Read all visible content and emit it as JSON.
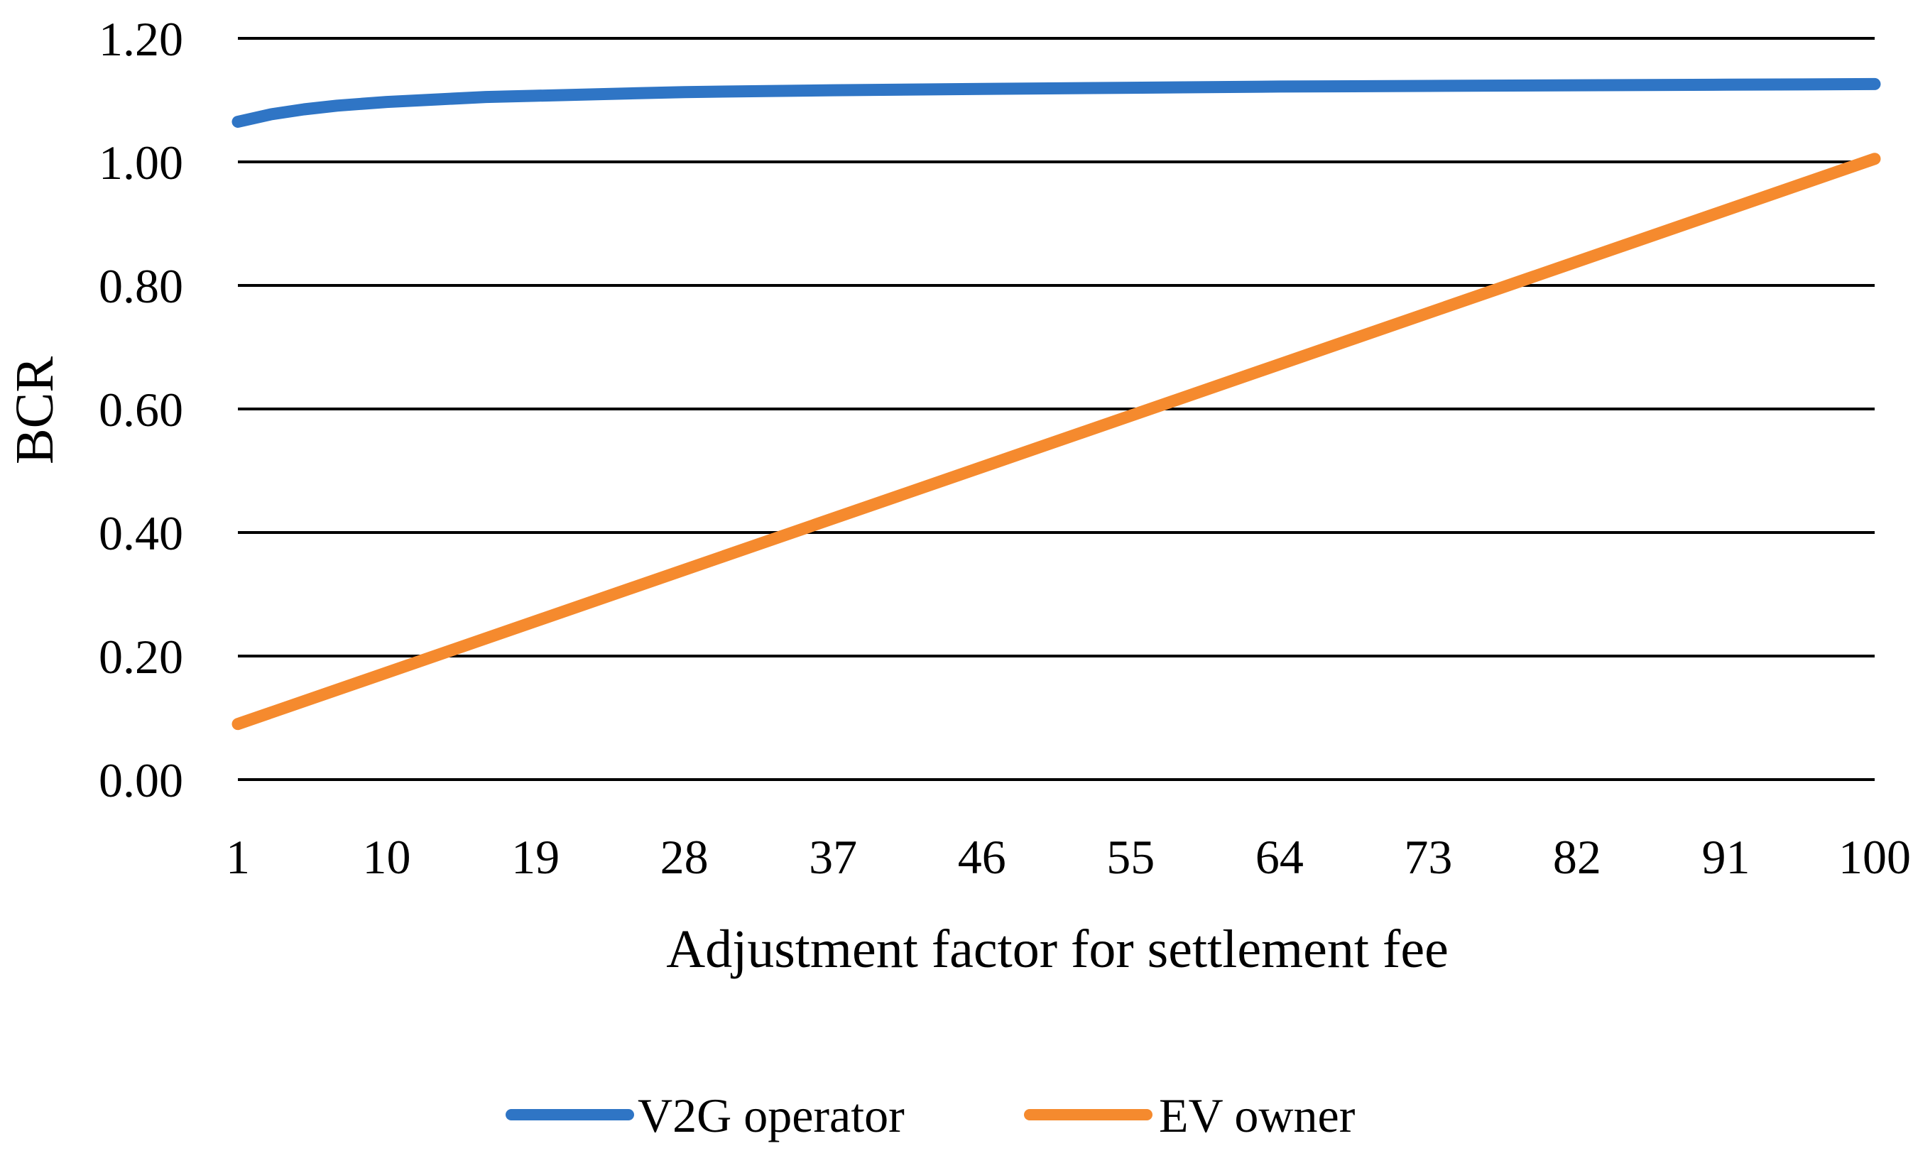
{
  "chart_data": {
    "type": "line",
    "title": "",
    "xlabel": "Adjustment factor for settlement fee",
    "ylabel": "BCR",
    "x_range": [
      1,
      100
    ],
    "ylim": [
      0,
      1.2
    ],
    "y_ticks": [
      "0.00",
      "0.20",
      "0.40",
      "0.60",
      "0.80",
      "1.00",
      "1.20"
    ],
    "x_ticks": [
      "1",
      "10",
      "19",
      "28",
      "37",
      "46",
      "55",
      "64",
      "73",
      "82",
      "91",
      "100"
    ],
    "grid": "horizontal",
    "legend_position": "bottom",
    "series": [
      {
        "name": "V2G operator",
        "color": "#2F75C5",
        "x": [
          1,
          3,
          5,
          7,
          10,
          13,
          16,
          19,
          25,
          28,
          37,
          46,
          55,
          64,
          73,
          82,
          91,
          100
        ],
        "values": [
          1.065,
          1.077,
          1.085,
          1.091,
          1.097,
          1.101,
          1.105,
          1.107,
          1.111,
          1.113,
          1.116,
          1.118,
          1.12,
          1.122,
          1.123,
          1.124,
          1.125,
          1.126
        ]
      },
      {
        "name": "EV owner",
        "color": "#F58A2E",
        "x": [
          1,
          100
        ],
        "values": [
          0.09,
          1.005
        ]
      }
    ]
  }
}
